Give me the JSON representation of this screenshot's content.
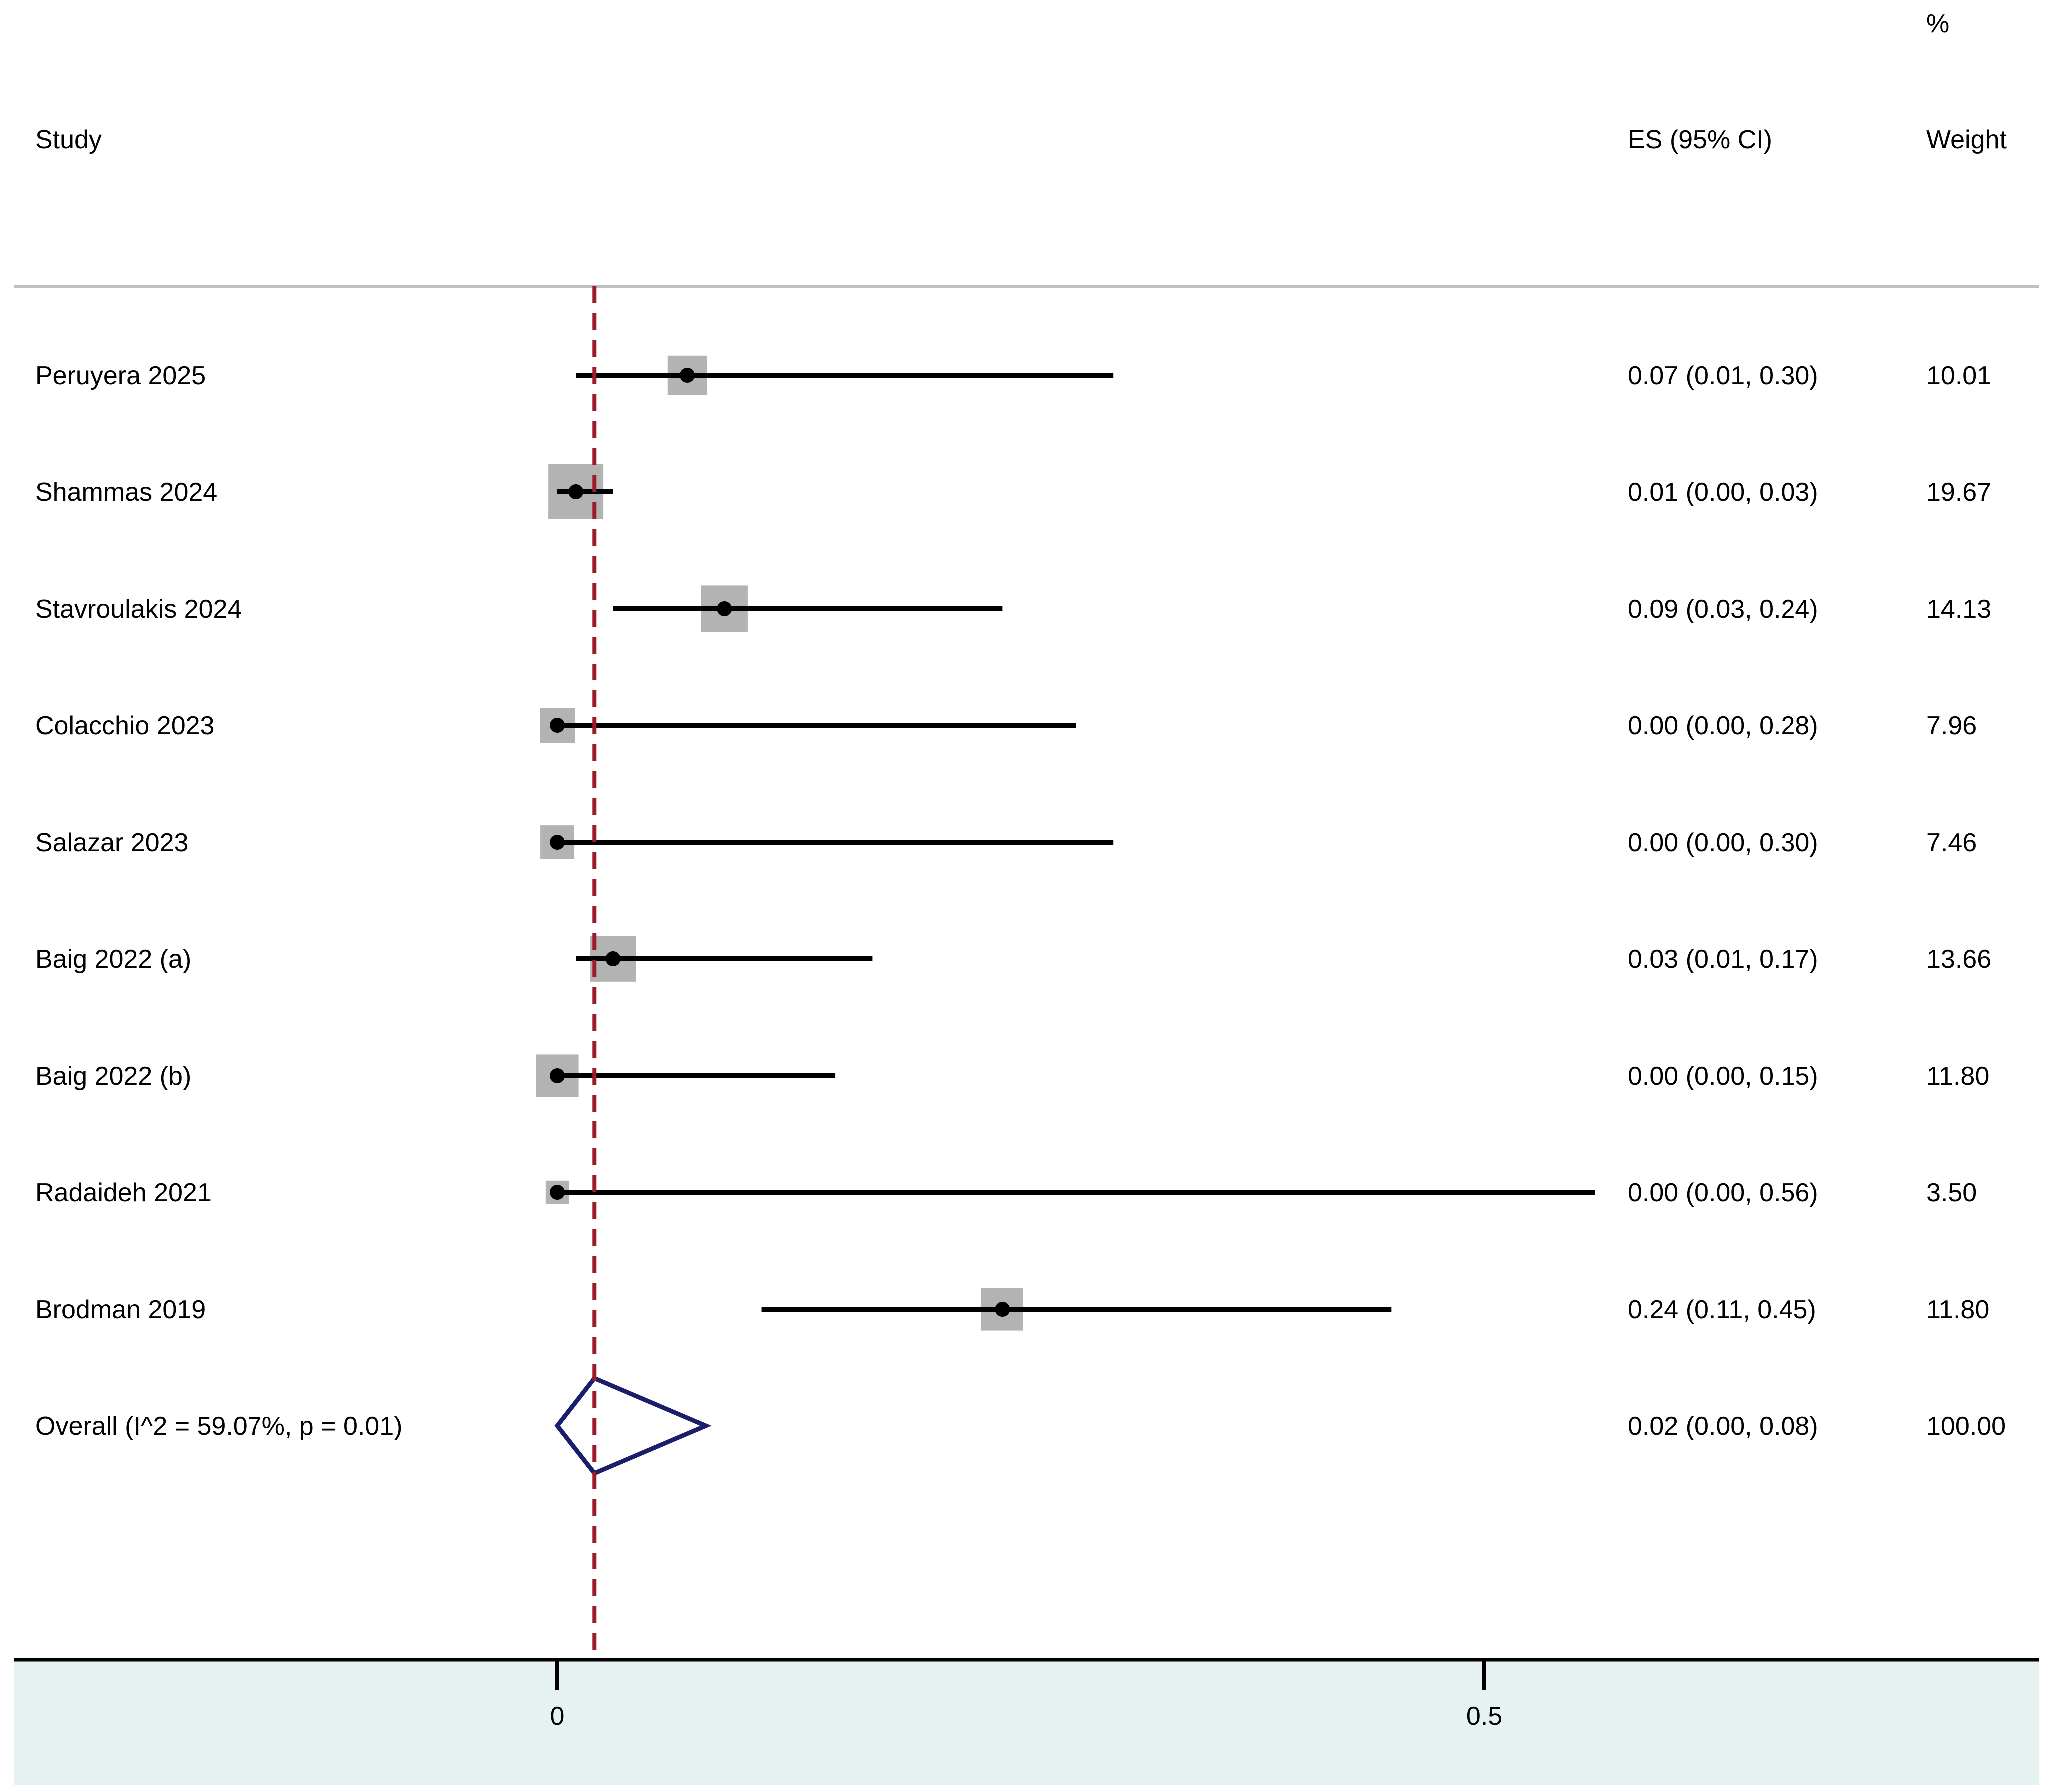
{
  "chart_data": {
    "type": "forest",
    "columns": {
      "study": "Study",
      "es": "ES (95% CI)",
      "weight_top": "%",
      "weight": "Weight"
    },
    "studies": [
      {
        "name": "Peruyera 2025",
        "es": 0.07,
        "lo": 0.01,
        "hi": 0.3,
        "es_label": "0.07 (0.01, 0.30)",
        "weight": 10.01,
        "weight_label": "10.01"
      },
      {
        "name": "Shammas 2024",
        "es": 0.01,
        "lo": 0.0,
        "hi": 0.03,
        "es_label": "0.01 (0.00, 0.03)",
        "weight": 19.67,
        "weight_label": "19.67"
      },
      {
        "name": "Stavroulakis 2024",
        "es": 0.09,
        "lo": 0.03,
        "hi": 0.24,
        "es_label": "0.09 (0.03, 0.24)",
        "weight": 14.13,
        "weight_label": "14.13"
      },
      {
        "name": "Colacchio 2023",
        "es": 0.0,
        "lo": 0.0,
        "hi": 0.28,
        "es_label": "0.00 (0.00, 0.28)",
        "weight": 7.96,
        "weight_label": "7.96"
      },
      {
        "name": "Salazar 2023",
        "es": 0.0,
        "lo": 0.0,
        "hi": 0.3,
        "es_label": "0.00 (0.00, 0.30)",
        "weight": 7.46,
        "weight_label": "7.46"
      },
      {
        "name": "Baig 2022 (a)",
        "es": 0.03,
        "lo": 0.01,
        "hi": 0.17,
        "es_label": "0.03 (0.01, 0.17)",
        "weight": 13.66,
        "weight_label": "13.66"
      },
      {
        "name": "Baig 2022 (b)",
        "es": 0.0,
        "lo": 0.0,
        "hi": 0.15,
        "es_label": "0.00 (0.00, 0.15)",
        "weight": 11.8,
        "weight_label": "11.80"
      },
      {
        "name": "Radaideh 2021",
        "es": 0.0,
        "lo": 0.0,
        "hi": 0.56,
        "es_label": "0.00 (0.00, 0.56)",
        "weight": 3.5,
        "weight_label": "3.50"
      },
      {
        "name": "Brodman 2019",
        "es": 0.24,
        "lo": 0.11,
        "hi": 0.45,
        "es_label": "0.24 (0.11, 0.45)",
        "weight": 11.8,
        "weight_label": "11.80"
      }
    ],
    "overall": {
      "name": "Overall  (I^2 = 59.07%, p = 0.01)",
      "es": 0.02,
      "lo": 0.0,
      "hi": 0.08,
      "es_label": "0.02 (0.00, 0.08)",
      "weight_label": "100.00"
    },
    "x_ticks": [
      {
        "value": 0,
        "label": "0"
      },
      {
        "value": 0.5,
        "label": "0.5"
      }
    ],
    "reference_line": 0.02,
    "colors": {
      "reference_line": "#9b1b2a",
      "diamond": "#1b1f6b",
      "weight_box": "#b3b3b3",
      "axis_band": "#e6f2f2",
      "header_rule": "#c0c0c0",
      "ci_line": "#000000"
    }
  }
}
